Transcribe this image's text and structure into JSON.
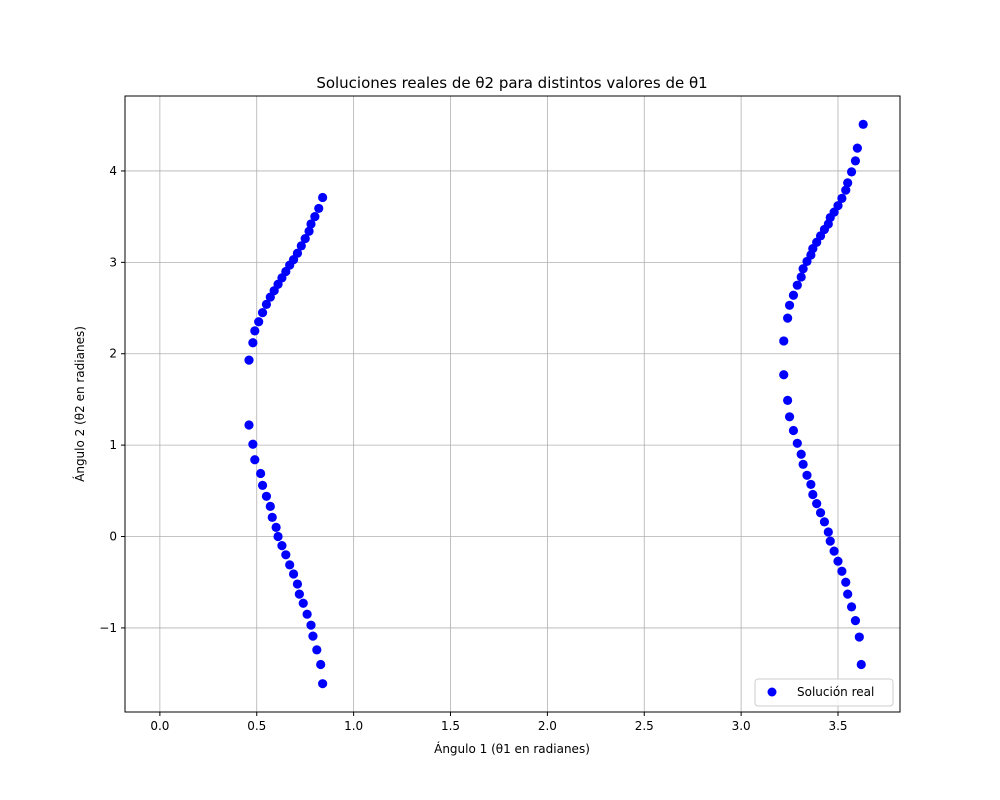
{
  "chart_data": {
    "type": "scatter",
    "title": "Soluciones reales de θ2 para distintos valores de θ1",
    "xlabel": "Ángulo 1 (θ1 en radianes)",
    "ylabel": "Ángulo 2 (θ2 en radianes)",
    "xlim": [
      -0.18,
      3.82
    ],
    "ylim": [
      -1.92,
      4.82
    ],
    "xticks": [
      0.0,
      0.5,
      1.0,
      1.5,
      2.0,
      2.5,
      3.0,
      3.5
    ],
    "xtick_labels": [
      "0.0",
      "0.5",
      "1.0",
      "1.5",
      "2.0",
      "2.5",
      "3.0",
      "3.5"
    ],
    "yticks": [
      -1,
      0,
      1,
      2,
      3,
      4
    ],
    "ytick_labels": [
      "−1",
      "0",
      "1",
      "2",
      "3",
      "4"
    ],
    "grid": true,
    "legend_position": "lower-right",
    "marker_color": "#0000ff",
    "series": [
      {
        "name": "Solución real",
        "x": [
          0.46,
          0.48,
          0.49,
          0.51,
          0.53,
          0.55,
          0.57,
          0.59,
          0.61,
          0.63,
          0.65,
          0.67,
          0.69,
          0.71,
          0.73,
          0.75,
          0.77,
          0.78,
          0.8,
          0.82,
          0.84,
          0.46,
          0.48,
          0.49,
          0.52,
          0.53,
          0.55,
          0.57,
          0.58,
          0.6,
          0.61,
          0.63,
          0.65,
          0.67,
          0.69,
          0.71,
          0.72,
          0.74,
          0.76,
          0.78,
          0.79,
          0.81,
          0.83,
          0.84,
          3.22,
          3.24,
          3.25,
          3.27,
          3.29,
          3.31,
          3.32,
          3.34,
          3.36,
          3.37,
          3.39,
          3.41,
          3.43,
          3.45,
          3.46,
          3.48,
          3.5,
          3.52,
          3.54,
          3.55,
          3.57,
          3.59,
          3.6,
          3.63,
          3.22,
          3.24,
          3.25,
          3.27,
          3.29,
          3.31,
          3.32,
          3.34,
          3.36,
          3.37,
          3.39,
          3.41,
          3.43,
          3.45,
          3.46,
          3.48,
          3.5,
          3.52,
          3.54,
          3.55,
          3.57,
          3.59,
          3.61,
          3.62
        ],
        "y": [
          1.93,
          2.12,
          2.25,
          2.35,
          2.45,
          2.54,
          2.62,
          2.69,
          2.76,
          2.83,
          2.9,
          2.97,
          3.03,
          3.1,
          3.18,
          3.26,
          3.34,
          3.42,
          3.5,
          3.59,
          3.71,
          1.22,
          1.01,
          0.84,
          0.69,
          0.56,
          0.44,
          0.33,
          0.21,
          0.1,
          0.0,
          -0.1,
          -0.2,
          -0.31,
          -0.41,
          -0.52,
          -0.63,
          -0.73,
          -0.85,
          -0.97,
          -1.09,
          -1.24,
          -1.4,
          -1.61,
          2.14,
          2.39,
          2.53,
          2.64,
          2.75,
          2.84,
          2.93,
          3.01,
          3.08,
          3.15,
          3.22,
          3.29,
          3.36,
          3.42,
          3.49,
          3.55,
          3.62,
          3.7,
          3.79,
          3.87,
          3.99,
          4.11,
          4.25,
          4.51,
          1.77,
          1.49,
          1.31,
          1.16,
          1.02,
          0.9,
          0.79,
          0.67,
          0.57,
          0.46,
          0.36,
          0.26,
          0.16,
          0.05,
          -0.05,
          -0.16,
          -0.27,
          -0.38,
          -0.5,
          -0.63,
          -0.77,
          -0.92,
          -1.1,
          -1.4
        ]
      }
    ]
  }
}
